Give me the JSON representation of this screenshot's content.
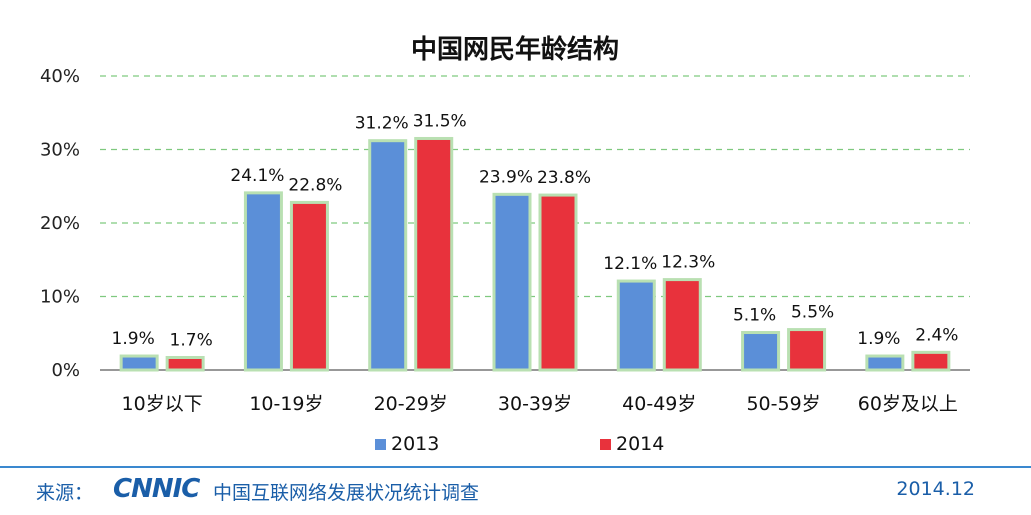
{
  "chart_data": {
    "type": "bar",
    "title": "中国网民年龄结构",
    "categories": [
      "10岁以下",
      "10-19岁",
      "20-29岁",
      "30-39岁",
      "40-49岁",
      "50-59岁",
      "60岁及以上"
    ],
    "series": [
      {
        "name": "2013",
        "color": "#5b8fd8",
        "values": [
          1.9,
          24.1,
          31.2,
          23.9,
          12.1,
          5.1,
          1.9
        ],
        "labels": [
          "1.9%",
          "24.1%",
          "31.2%",
          "23.9%",
          "12.1%",
          "5.1%",
          "1.9%"
        ]
      },
      {
        "name": "2014",
        "color": "#e8323c",
        "values": [
          1.7,
          22.8,
          31.5,
          23.8,
          12.3,
          5.5,
          2.4
        ],
        "labels": [
          "1.7%",
          "22.8%",
          "31.5%",
          "23.8%",
          "12.3%",
          "5.5%",
          "2.4%"
        ]
      }
    ],
    "yticks": [
      "0%",
      "10%",
      "20%",
      "30%",
      "40%"
    ],
    "ylim": [
      0,
      40
    ],
    "grid": true,
    "legend_position": "bottom",
    "bar_outline_color": "#b9e0b2",
    "grid_color": "#7fc97f"
  },
  "footer": {
    "source_label": "来源：",
    "logo_text": "CNNIC",
    "survey_name": "中国互联网络发展状况统计调查",
    "date": "2014.12"
  }
}
